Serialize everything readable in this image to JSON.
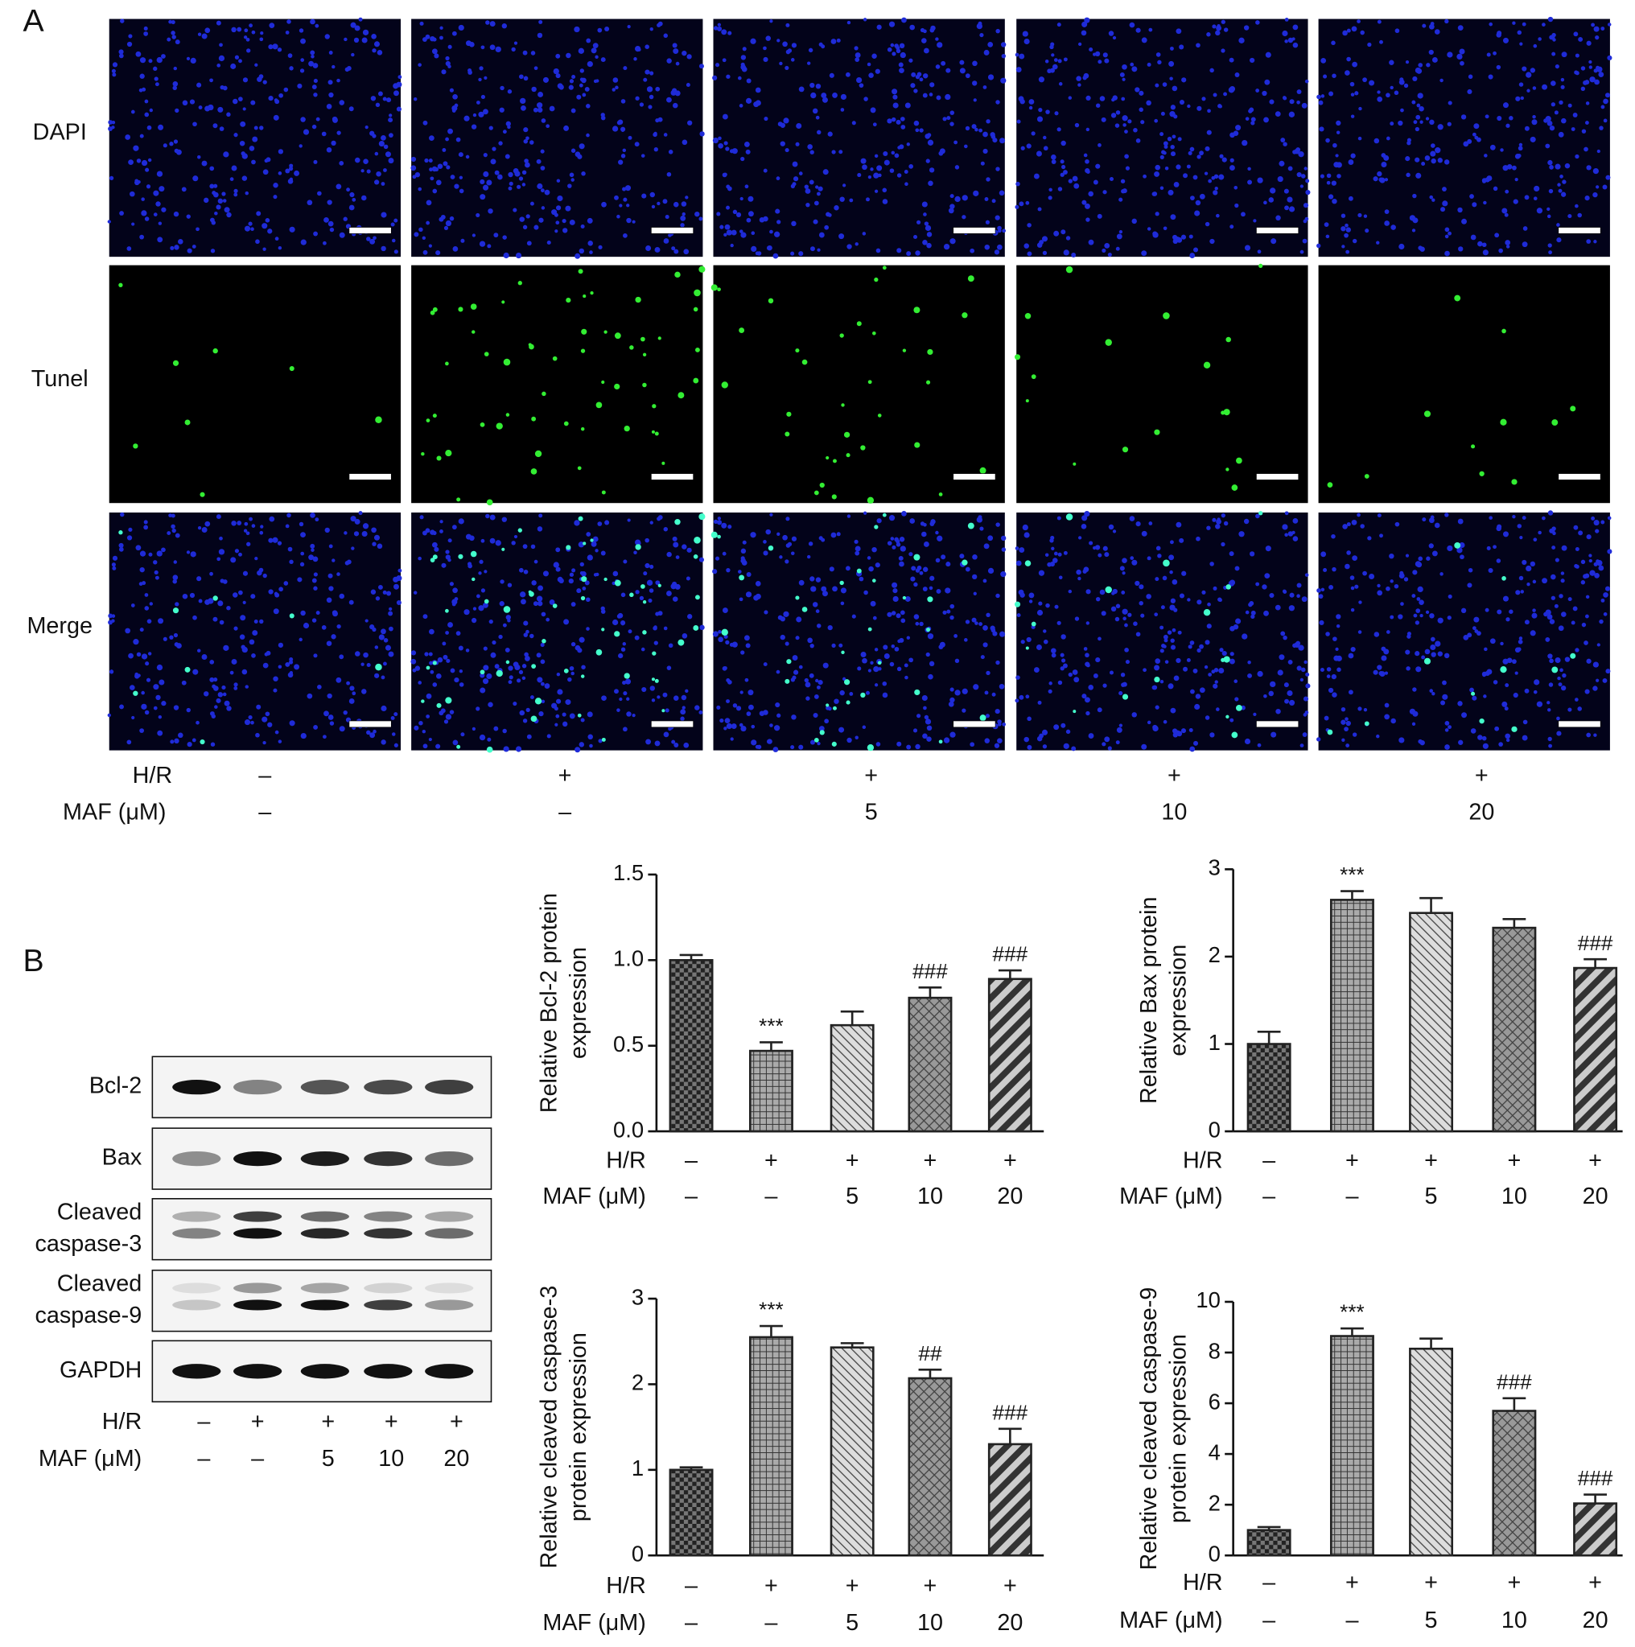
{
  "panel_a": {
    "label": "A",
    "rows": [
      "DAPI",
      "Tunel",
      "Merge"
    ],
    "conditions": [
      {
        "label": "H/R",
        "values": [
          "–",
          "+",
          "+",
          "+",
          "+"
        ]
      },
      {
        "label": "MAF (μM)",
        "values": [
          "–",
          "–",
          "5",
          "10",
          "20"
        ]
      }
    ]
  },
  "panel_b": {
    "label": "B",
    "blot_rows": [
      [
        "Bcl-2"
      ],
      [
        "Bax"
      ],
      [
        "Cleaved",
        "caspase-3"
      ],
      [
        "Cleaved",
        "caspase-9"
      ],
      [
        "GAPDH"
      ]
    ],
    "conditions": [
      {
        "label": "H/R",
        "values": [
          "–",
          "+",
          "+",
          "+",
          "+"
        ]
      },
      {
        "label": "MAF (μM)",
        "values": [
          "–",
          "–",
          "5",
          "10",
          "20"
        ]
      }
    ]
  },
  "chart_data": [
    {
      "type": "bar",
      "ylabel": [
        "Relative Bcl-2 protein",
        "expression"
      ],
      "conditions": [
        {
          "label": "H/R",
          "values": [
            "–",
            "+",
            "+",
            "+",
            "+"
          ]
        },
        {
          "label": "MAF (μM)",
          "values": [
            "–",
            "–",
            "5",
            "10",
            "20"
          ]
        }
      ],
      "values": [
        1.0,
        0.47,
        0.62,
        0.78,
        0.89
      ],
      "errors": [
        0.03,
        0.05,
        0.08,
        0.06,
        0.05
      ],
      "annotations": [
        null,
        "***",
        null,
        "###",
        "###"
      ],
      "color": "#222222",
      "ylim": [
        0,
        1.5
      ],
      "yticks": [
        {
          "value": 0,
          "label": "0.0"
        },
        {
          "value": 0.5,
          "label": "0.5"
        },
        {
          "value": 1,
          "label": "1.0"
        },
        {
          "value": 1.5,
          "label": "1.5"
        }
      ]
    },
    {
      "type": "bar",
      "ylabel": [
        "Relative Bax protein",
        "expression"
      ],
      "conditions": [
        {
          "label": "H/R",
          "values": [
            "–",
            "+",
            "+",
            "+",
            "+"
          ]
        },
        {
          "label": "MAF (μM)",
          "values": [
            "–",
            "–",
            "5",
            "10",
            "20"
          ]
        }
      ],
      "values": [
        1.0,
        2.65,
        2.5,
        2.33,
        1.87
      ],
      "errors": [
        0.14,
        0.1,
        0.17,
        0.1,
        0.1
      ],
      "annotations": [
        null,
        "***",
        null,
        null,
        "###"
      ],
      "color": "#222222",
      "ylim": [
        0,
        3
      ],
      "yticks": [
        0,
        1,
        2,
        3
      ]
    },
    {
      "type": "bar",
      "ylabel": [
        "Relative cleaved caspase-3",
        "protein expression"
      ],
      "conditions": [
        {
          "label": "H/R",
          "values": [
            "–",
            "+",
            "+",
            "+",
            "+"
          ]
        },
        {
          "label": "MAF (μM)",
          "values": [
            "–",
            "–",
            "5",
            "10",
            "20"
          ]
        }
      ],
      "values": [
        1.0,
        2.55,
        2.43,
        2.07,
        1.3
      ],
      "errors": [
        0.03,
        0.13,
        0.05,
        0.1,
        0.18
      ],
      "annotations": [
        null,
        "***",
        null,
        "##",
        "###"
      ],
      "color": "#222222",
      "ylim": [
        0,
        3
      ],
      "yticks": [
        0,
        1,
        2,
        3
      ]
    },
    {
      "type": "bar",
      "ylabel": [
        "Relative cleaved caspase-9",
        "protein expression"
      ],
      "conditions": [
        {
          "label": "H/R",
          "values": [
            "–",
            "+",
            "+",
            "+",
            "+"
          ]
        },
        {
          "label": "MAF (μM)",
          "values": [
            "–",
            "–",
            "5",
            "10",
            "20"
          ]
        }
      ],
      "values": [
        1.0,
        8.65,
        8.15,
        5.7,
        2.05
      ],
      "errors": [
        0.12,
        0.3,
        0.4,
        0.5,
        0.35
      ],
      "annotations": [
        null,
        "***",
        null,
        "###",
        "###"
      ],
      "color": "#222222",
      "ylim": [
        0,
        10
      ],
      "yticks": [
        0,
        2,
        4,
        6,
        8,
        10
      ]
    }
  ]
}
